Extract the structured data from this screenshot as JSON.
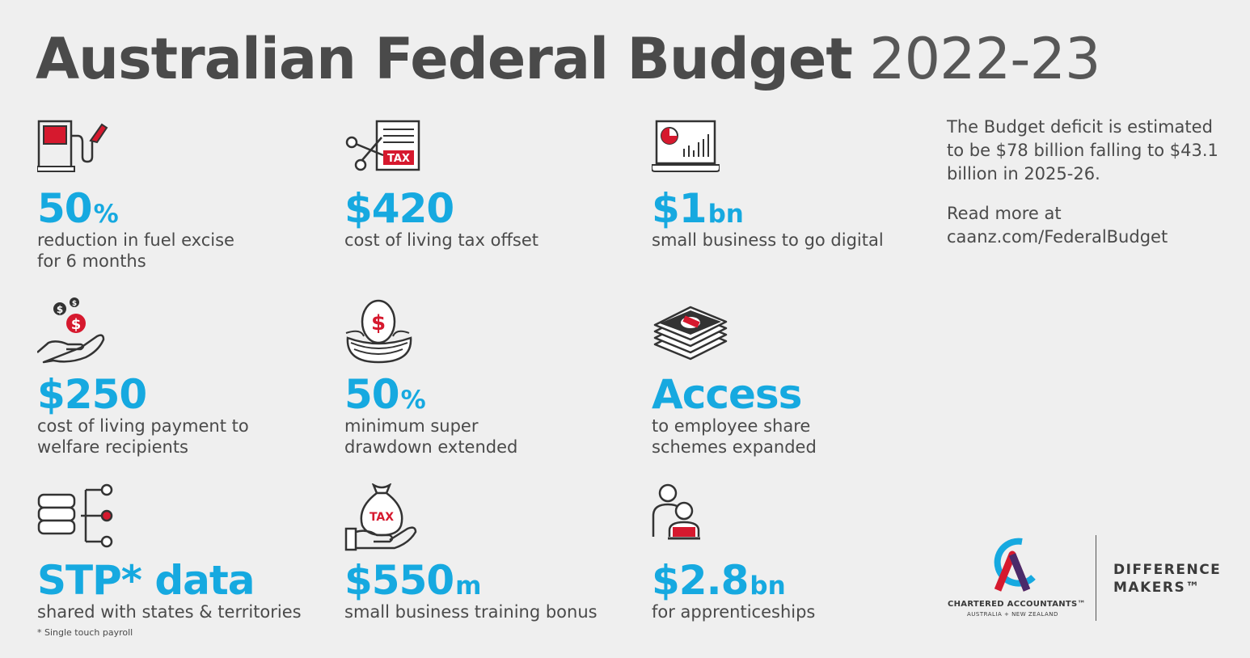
{
  "header": {
    "title_bold": "Australian Federal Budget",
    "title_year": "2022-23"
  },
  "items": [
    {
      "icon": "fuel-pump-icon",
      "value": "50",
      "unit": "%",
      "desc": "reduction in fuel excise\nfor 6 months"
    },
    {
      "icon": "tax-cut-icon",
      "value": "$420",
      "unit": "",
      "desc": "cost of living tax offset"
    },
    {
      "icon": "laptop-chart-icon",
      "value": "$1",
      "unit": "bn",
      "desc": "small business to go digital"
    },
    {
      "icon": "hand-coins-icon",
      "value": "$250",
      "unit": "",
      "desc": "cost of living payment to\nwelfare recipients"
    },
    {
      "icon": "nest-egg-icon",
      "value": "50",
      "unit": "%",
      "desc": "minimum super\ndrawdown extended"
    },
    {
      "icon": "cash-stack-icon",
      "value": "Access",
      "unit": "",
      "desc": "to employee share\nschemes expanded"
    },
    {
      "icon": "database-network-icon",
      "value": "STP* data",
      "unit": "",
      "desc": "shared with states & territories"
    },
    {
      "icon": "tax-bag-hand-icon",
      "value": "$550",
      "unit": "m",
      "desc": "small business training bonus"
    },
    {
      "icon": "apprentice-laptop-icon",
      "value": "$2.8",
      "unit": "bn",
      "desc": "for apprenticeships"
    }
  ],
  "footnote": "* Single touch payroll",
  "sidebar": {
    "deficit_text": "The Budget deficit is estimated to be $78 billion falling to $43.1 billion in 2025-26.",
    "read_more": "Read more at",
    "link": "caanz.com/FederalBudget"
  },
  "logo": {
    "name": "CHARTERED ACCOUNTANTS™",
    "sub": "AUSTRALIA + NEW ZEALAND",
    "tagline": "DIFFERENCE\nMAKERS™"
  },
  "colors": {
    "accent": "#16a9e0",
    "red": "#d6192e",
    "text": "#4a4a4a",
    "background": "#efefef"
  }
}
